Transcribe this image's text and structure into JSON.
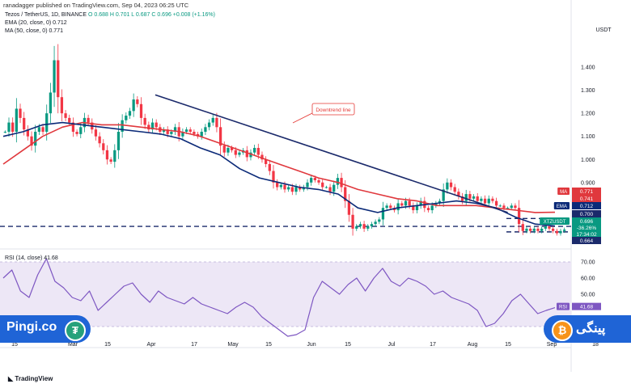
{
  "header": {
    "publisher": "ranadagger published on TradingView.com, Sep 04, 2023 06:25 UTC"
  },
  "price_legend": {
    "symbol": "Tezos / TetherUS, 1D, BINANCE",
    "ohlc": "O 0.688  H 0.701  L 0.687  C 0.696  +0.008 (+1.16%)",
    "ema": "EMA (20, close, 0)  0.712",
    "ma": "MA (50, close, 0)  0.771"
  },
  "rsi_legend": "RSI (14, close)  41.68",
  "currency": "USDT",
  "annotation": "Downtrend line",
  "watermark": "TradingView",
  "brand": {
    "latin": "Pingi.co",
    "persian": "پینگی"
  },
  "colors": {
    "up": "#089981",
    "down": "#f23645",
    "ema": "#0b2a78",
    "ma": "#e0383d",
    "trend": "#1b2a6b",
    "rsi": "#7e57c2",
    "rsi_band": "#ede7f6",
    "brand": "#1f64d6"
  },
  "chart_data": [
    {
      "type": "candlestick",
      "title": "Tezos / TetherUS, 1D, BINANCE",
      "x_ticks": [
        "15",
        "Mar",
        "15",
        "Apr",
        "17",
        "May",
        "15",
        "Jun",
        "15",
        "Jul",
        "17",
        "Aug",
        "15",
        "Sep",
        "18"
      ],
      "y_ticks": [
        "1.400",
        "1.300",
        "1.200",
        "1.100",
        "1.000",
        "0.900"
      ],
      "ylim": [
        0.64,
        1.53
      ],
      "series": [
        {
          "name": "Price",
          "values": [
            1.12,
            1.16,
            1.12,
            1.22,
            1.18,
            1.13,
            1.1,
            1.06,
            1.12,
            1.14,
            1.12,
            1.2,
            1.29,
            1.43,
            1.27,
            1.2,
            1.18,
            1.16,
            1.12,
            1.11,
            1.14,
            1.18,
            1.16,
            1.13,
            1.1,
            1.07,
            1.04,
            1.0,
            0.99,
            1.04,
            1.12,
            1.17,
            1.19,
            1.21,
            1.26,
            1.24,
            1.18,
            1.15,
            1.13,
            1.16,
            1.14,
            1.12,
            1.13,
            1.11,
            1.12,
            1.14,
            1.1,
            1.12,
            1.13,
            1.12,
            1.11,
            1.1,
            1.12,
            1.14,
            1.16,
            1.18,
            1.14,
            1.06,
            1.03,
            1.05,
            1.04,
            1.02,
            1.03,
            1.04,
            1.01,
            1.03,
            1.05,
            1.02,
            1.0,
            0.98,
            0.95,
            0.9,
            0.88,
            0.89,
            0.87,
            0.88,
            0.86,
            0.88,
            0.87,
            0.88,
            0.9,
            0.92,
            0.91,
            0.9,
            0.88,
            0.88,
            0.86,
            0.89,
            0.92,
            0.88,
            0.82,
            0.76,
            0.7,
            0.71,
            0.72,
            0.7,
            0.71,
            0.72,
            0.73,
            0.74,
            0.79,
            0.8,
            0.79,
            0.78,
            0.81,
            0.8,
            0.82,
            0.8,
            0.78,
            0.8,
            0.82,
            0.79,
            0.78,
            0.8,
            0.81,
            0.82,
            0.87,
            0.9,
            0.88,
            0.86,
            0.84,
            0.82,
            0.85,
            0.83,
            0.84,
            0.82,
            0.83,
            0.81,
            0.83,
            0.82,
            0.8,
            0.8,
            0.79,
            0.79,
            0.8,
            0.79,
            0.72,
            0.69,
            0.7,
            0.69,
            0.7,
            0.69,
            0.7,
            0.71,
            0.7,
            0.69,
            0.68,
            0.69,
            0.696
          ]
        },
        {
          "name": "EMA (20, close, 0)",
          "values": [
            1.1,
            1.12,
            1.15,
            1.16,
            1.15,
            1.14,
            1.13,
            1.12,
            1.11,
            1.09,
            1.05,
            1.02,
            0.96,
            0.92,
            0.9,
            0.88,
            0.87,
            0.85,
            0.79,
            0.77,
            0.79,
            0.8,
            0.81,
            0.82,
            0.81,
            0.79,
            0.75,
            0.72,
            0.712
          ]
        },
        {
          "name": "MA (50, close, 0)",
          "values": [
            0.98,
            1.04,
            1.1,
            1.14,
            1.16,
            1.15,
            1.15,
            1.14,
            1.13,
            1.12,
            1.1,
            1.07,
            1.04,
            1.01,
            0.98,
            0.95,
            0.92,
            0.9,
            0.87,
            0.85,
            0.83,
            0.82,
            0.8,
            0.8,
            0.8,
            0.79,
            0.78,
            0.77,
            0.771
          ]
        }
      ],
      "trendline": {
        "label": "Downtrend line",
        "from": [
          0.27,
          1.28
        ],
        "to": [
          0.896,
          0.77
        ]
      },
      "horizontal_levels": [
        0.71,
        0.744,
        0.686
      ],
      "price_labels": [
        {
          "tag": "MA",
          "value": "0.771"
        },
        {
          "tag": "",
          "value": "0.741"
        },
        {
          "tag": "EMA",
          "value": "0.712"
        },
        {
          "tag": "",
          "value": "0.700"
        },
        {
          "tag": "XTZUSDT",
          "value": "0.696"
        },
        {
          "tag": "",
          "value": "-36.26%"
        },
        {
          "tag": "",
          "value": "17:34:02"
        },
        {
          "tag": "",
          "value": "0.664"
        }
      ]
    },
    {
      "type": "line",
      "title": "RSI (14, close)",
      "y_ticks": [
        "70.00",
        "60.00",
        "50.00"
      ],
      "ylim": [
        20,
        75
      ],
      "band": [
        30,
        70
      ],
      "series": [
        {
          "name": "RSI",
          "values": [
            60,
            65,
            52,
            48,
            62,
            72,
            58,
            54,
            48,
            46,
            52,
            40,
            45,
            50,
            55,
            57,
            50,
            45,
            52,
            48,
            46,
            44,
            48,
            44,
            42,
            40,
            38,
            42,
            45,
            42,
            36,
            32,
            28,
            24,
            25,
            28,
            48,
            58,
            54,
            50,
            56,
            60,
            52,
            60,
            66,
            58,
            55,
            60,
            58,
            55,
            50,
            52,
            48,
            46,
            44,
            40,
            30,
            32,
            38,
            46,
            50,
            44,
            38,
            40,
            41.68
          ]
        }
      ],
      "last_label": {
        "tag": "RSI",
        "value": "41.68"
      }
    }
  ]
}
